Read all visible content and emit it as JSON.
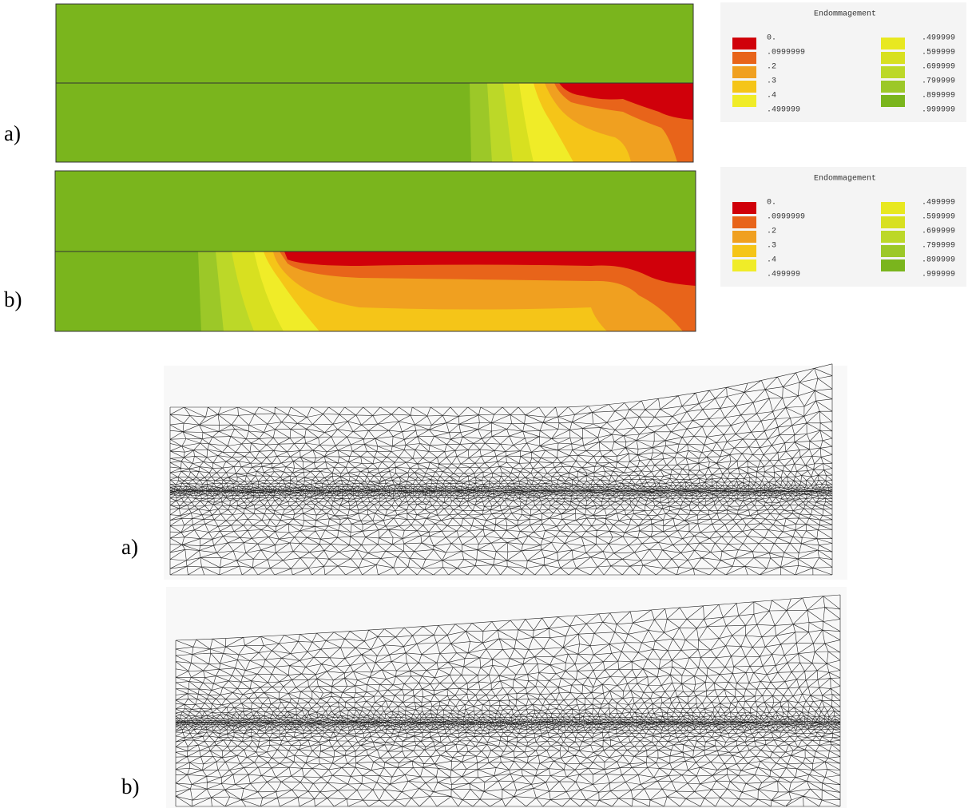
{
  "contour_plots": [
    {
      "label": "a)",
      "legend": {
        "title": "Endommagement",
        "left": [
          "0.",
          ".0999999",
          ".2",
          ".3",
          ".4",
          ".499999"
        ],
        "right": [
          ".499999",
          ".599999",
          ".699999",
          ".799999",
          ".899999",
          ".999999"
        ]
      }
    },
    {
      "label": "b)",
      "legend": {
        "title": "Endommagement",
        "left": [
          "0.",
          ".0999999",
          ".2",
          ".3",
          ".4",
          ".499999"
        ],
        "right": [
          ".499999",
          ".599999",
          ".699999",
          ".799999",
          ".899999",
          ".999999"
        ]
      }
    }
  ],
  "meshes": [
    {
      "label": "a)"
    },
    {
      "label": "b)"
    }
  ]
}
